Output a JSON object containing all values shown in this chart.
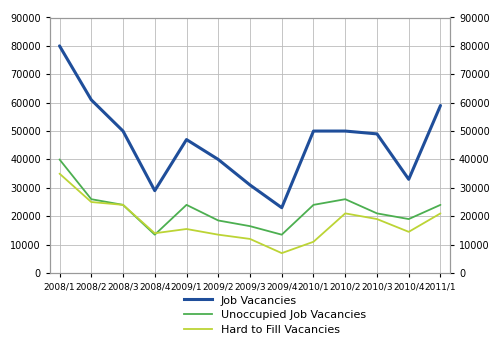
{
  "x_labels": [
    "2008/1",
    "2008/2",
    "2008/3",
    "2008/4",
    "2009/1",
    "2009/2",
    "2009/3",
    "2009/4",
    "2010/1",
    "2010/2",
    "2010/3",
    "2010/4",
    "2011/1"
  ],
  "job_vacancies": [
    80000,
    61000,
    50000,
    29000,
    47000,
    40000,
    31000,
    23000,
    50000,
    50000,
    49000,
    33000,
    59000
  ],
  "unoccupied_vacancies": [
    40000,
    26000,
    24000,
    13500,
    24000,
    18500,
    16500,
    13500,
    24000,
    26000,
    21000,
    19000,
    24000
  ],
  "hard_to_fill": [
    35000,
    25000,
    24000,
    14000,
    15500,
    13500,
    12000,
    7000,
    11000,
    21000,
    19000,
    14500,
    21000
  ],
  "job_vacancies_color": "#1f4e9a",
  "unoccupied_color": "#4caf50",
  "hard_to_fill_color": "#bcd435",
  "ylim": [
    0,
    90000
  ],
  "yticks": [
    0,
    10000,
    20000,
    30000,
    40000,
    50000,
    60000,
    70000,
    80000,
    90000
  ],
  "legend_labels": [
    "Job Vacancies",
    "Unoccupied Job Vacancies",
    "Hard to Fill Vacancies"
  ],
  "grid_color": "#bbbbbb",
  "background_color": "#ffffff"
}
